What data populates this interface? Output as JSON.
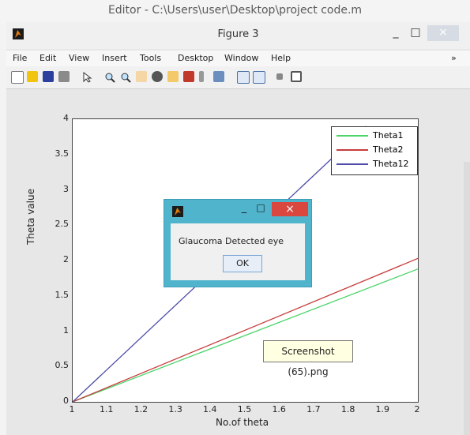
{
  "editor": {
    "title": "Editor - C:\\Users\\user\\Desktop\\project code.m"
  },
  "figure": {
    "title": "Figure 3",
    "window_buttons": {
      "minimize": "_",
      "maximize": "□",
      "close": "×"
    },
    "menu": [
      "File",
      "Edit",
      "View",
      "Insert",
      "Tools",
      "Desktop",
      "Window",
      "Help"
    ],
    "menu_overflow": "»"
  },
  "chart_data": {
    "type": "line",
    "xlabel": "No.of theta",
    "ylabel": "Theta value",
    "xlim": [
      1,
      2
    ],
    "ylim": [
      0,
      4
    ],
    "xticks": [
      "1",
      "1.1",
      "1.2",
      "1.3",
      "1.4",
      "1.5",
      "1.6",
      "1.7",
      "1.8",
      "1.9",
      "2"
    ],
    "yticks": [
      "0",
      "0.5",
      "1",
      "1.5",
      "2",
      "2.5",
      "3",
      "3.5",
      "4"
    ],
    "legend": {
      "placement": "top-right"
    },
    "series": [
      {
        "name": "Theta1",
        "color": "#4cd46a",
        "x": [
          1,
          2
        ],
        "y": [
          0,
          1.88
        ]
      },
      {
        "name": "Theta2",
        "color": "#c83c3c",
        "x": [
          1,
          2
        ],
        "y": [
          0,
          2.03
        ]
      },
      {
        "name": "Theta12",
        "color": "#4d4da8",
        "x": [
          1,
          1.85
        ],
        "y": [
          0,
          3.9
        ]
      }
    ]
  },
  "dialog": {
    "message": "Glaucoma Detected eye",
    "ok_label": "OK",
    "close_label": "×",
    "minimize_label": "_",
    "maximize_label": "□"
  },
  "tooltip": {
    "text": "Screenshot (65).png"
  }
}
